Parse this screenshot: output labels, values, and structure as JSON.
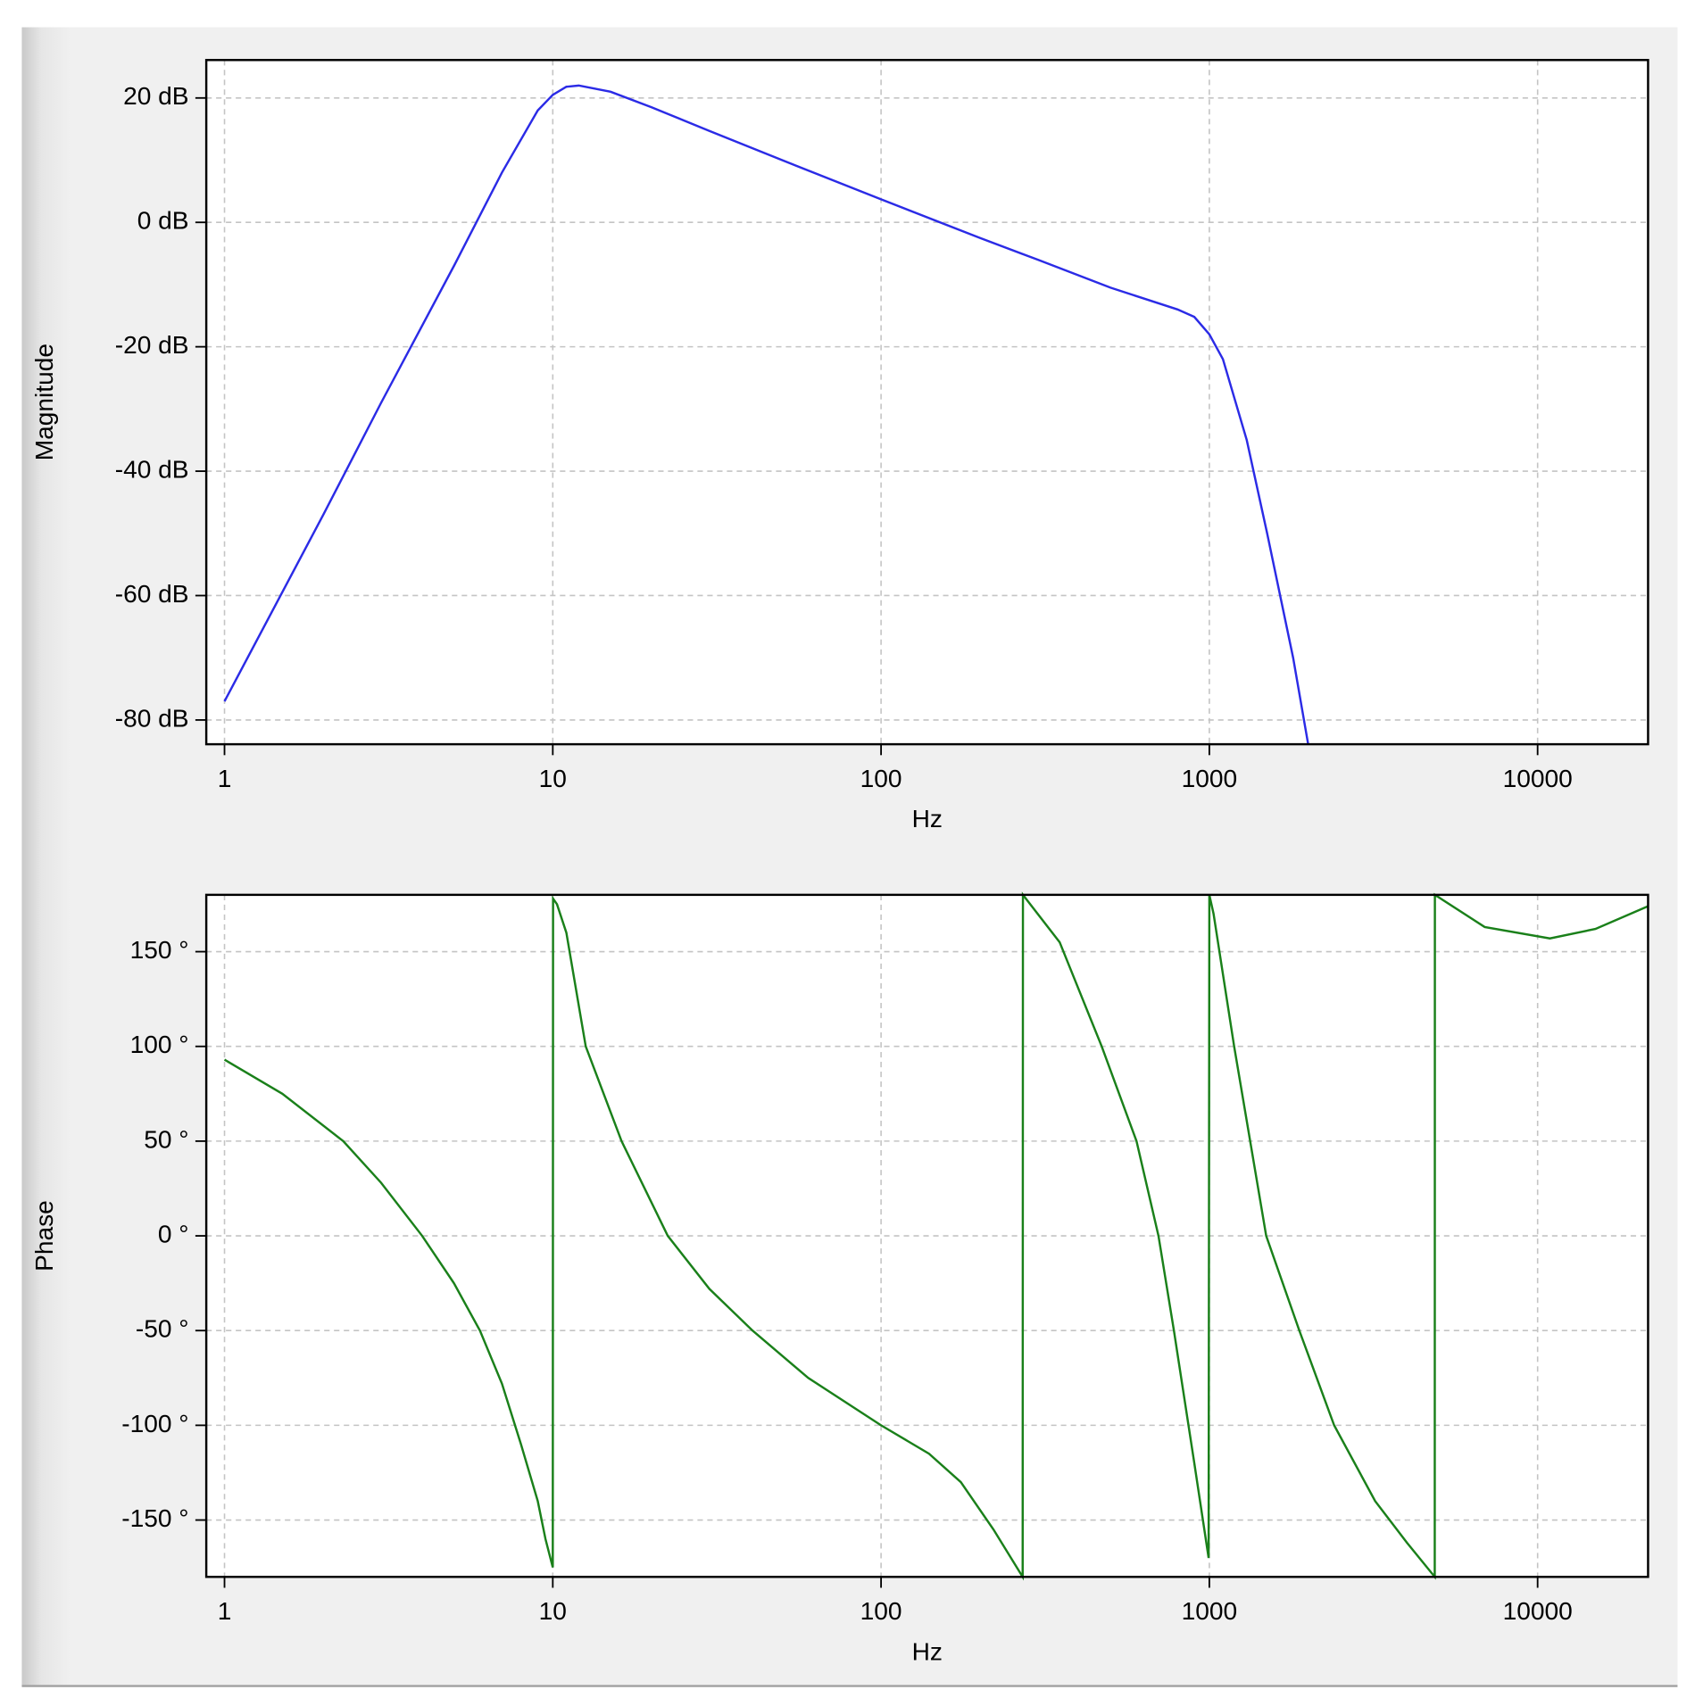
{
  "chart_data": [
    {
      "type": "line",
      "y_label": "Magnitude",
      "x_label": "Hz",
      "log_x": true,
      "grid": true,
      "color": "#2b2be6",
      "x": [
        1,
        2,
        3,
        5,
        7,
        9,
        10,
        11,
        12,
        15,
        20,
        30,
        50,
        100,
        200,
        300,
        500,
        800,
        900,
        1000,
        1100,
        1300,
        1500,
        1800,
        2000
      ],
      "values": [
        -77,
        -47,
        -29,
        -7,
        8,
        18,
        20.5,
        21.8,
        22,
        21,
        18.5,
        14.7,
        10,
        3.7,
        -2.5,
        -6,
        -10.5,
        -14,
        -15.2,
        -18,
        -22,
        -35,
        -50,
        -70,
        -83.9
      ],
      "xlim": [
        0.88,
        21700
      ],
      "ylim": [
        -83.9,
        26.1
      ],
      "xticks": [
        1,
        10,
        100,
        1000,
        10000
      ],
      "yticks": [
        {
          "value": -80,
          "label": "-80 dB"
        },
        {
          "value": -60,
          "label": "-60 dB"
        },
        {
          "value": -40,
          "label": "-40 dB"
        },
        {
          "value": -20,
          "label": "-20 dB"
        },
        {
          "value": 0,
          "label": "0 dB"
        },
        {
          "value": 20,
          "label": "20 dB"
        }
      ]
    },
    {
      "type": "line",
      "y_label": "Phase",
      "x_label": "Hz",
      "log_x": true,
      "grid": true,
      "color": "#1a801a",
      "x": [
        1,
        1.5,
        2.3,
        3,
        4,
        5,
        6,
        7,
        8,
        9,
        9.5,
        10,
        10.02,
        10.3,
        11,
        12.6,
        16.2,
        22.4,
        30,
        40.6,
        60,
        100,
        140,
        175,
        220,
        270,
        270.5,
        350,
        470,
        600,
        700,
        780,
        900,
        995,
        1000,
        1030,
        1190,
        1490,
        1880,
        2400,
        3200,
        4000,
        4860,
        4865,
        6900,
        10900,
        15000,
        21700
      ],
      "values": [
        93,
        75,
        50,
        28,
        0,
        -25,
        -50,
        -78,
        -110,
        -140,
        -160,
        -175,
        178,
        175,
        160,
        100,
        50,
        0,
        -28,
        -50,
        -75,
        -100,
        -115,
        -130,
        -155,
        -180,
        180,
        155,
        100,
        50,
        0,
        -50,
        -120,
        -170,
        180,
        170,
        100,
        0,
        -50,
        -100,
        -140,
        -162,
        -180,
        180,
        163,
        157,
        162,
        174
      ],
      "xlim": [
        0.88,
        21700
      ],
      "ylim": [
        -180,
        180
      ],
      "xticks": [
        1,
        10,
        100,
        1000,
        10000
      ],
      "yticks": [
        {
          "value": -150,
          "label": "-150 °"
        },
        {
          "value": -100,
          "label": "-100 °"
        },
        {
          "value": -50,
          "label": "-50 °"
        },
        {
          "value": 0,
          "label": "0 °"
        },
        {
          "value": 50,
          "label": "50 °"
        },
        {
          "value": 100,
          "label": "100 °"
        },
        {
          "value": 150,
          "label": "150 °"
        }
      ]
    }
  ]
}
